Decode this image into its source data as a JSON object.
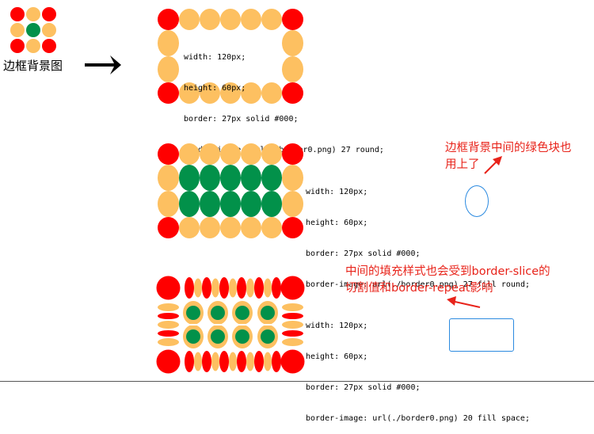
{
  "legend": {
    "caption": "边框背景图",
    "arrow": "right-arrow-icon"
  },
  "colors": {
    "red": "#ff0000",
    "orange": "#fdc061",
    "green": "#02914a",
    "annotation": "#e8231a",
    "highlight": "#2b8ae0"
  },
  "examples": [
    {
      "code_lines": [
        "width: 120px;",
        "height: 60px;",
        "border: 27px solid #000;"
      ],
      "image_prefix": "border-image: url(./border0.png) 27 round;"
    },
    {
      "code_lines": [
        "width: 120px;",
        "height: 60px;",
        "border: 27px solid #000;"
      ],
      "image_prefix": "border-image: url(./border0.png) 27 ",
      "image_highlight": "fill",
      "image_suffix": " round;"
    },
    {
      "code_lines": [
        "width: 120px;",
        "height: 60px;",
        "border: 27px solid #000;"
      ],
      "image_prefix": "border-image: url(./border0.png) ",
      "image_highlight": "20 fill space",
      "image_suffix": ";"
    }
  ],
  "notes": {
    "fill_note_line1": "边框背景中间的绿色块也",
    "fill_note_line2": "用上了",
    "slice_note_line1": "中间的填充样式也会受到border-slice的",
    "slice_note_line2": "切割值和border-repeat影响"
  }
}
